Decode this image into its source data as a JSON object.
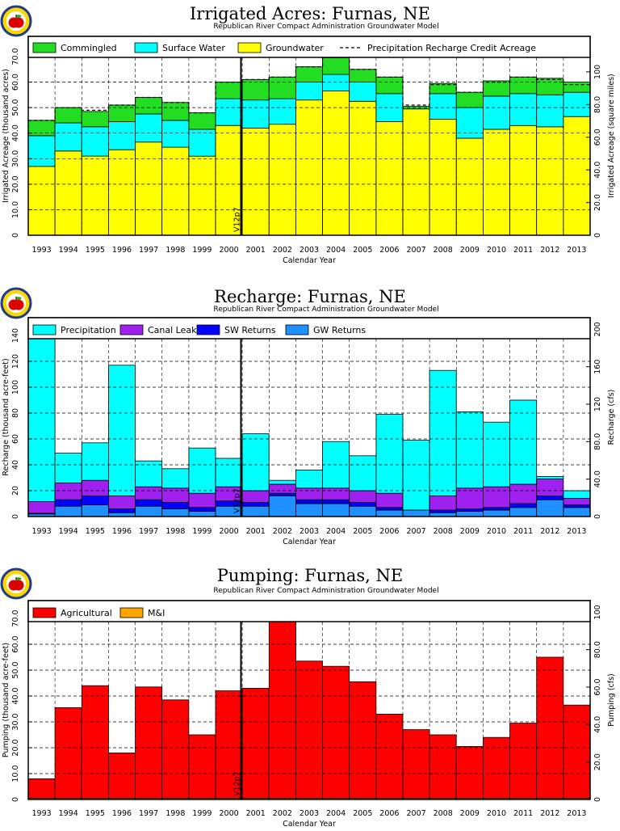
{
  "colors": {
    "groundwater": "#ffff00",
    "surface_water": "#00ffff",
    "commingled": "#22dd22",
    "precipitation": "#00ffff",
    "gw_returns": "#1e90ff",
    "sw_returns": "#0000ff",
    "canal_leakage": "#a020f0",
    "agricultural": "#ff0000",
    "mi": "#ffa500"
  },
  "chart_data": [
    {
      "type": "bar",
      "stacked": true,
      "title": "Irrigated  Acres:  Furnas,  NE",
      "subtitle": "Republican  River  Compact  Administration  Groundwater  Model",
      "xlabel": "Calendar  Year",
      "ylabel": "Irrigated  Acreage  (thousand  acres)",
      "ylabel_right": "Irrigated  Acreage  (square  miles)",
      "categories": [
        "1993",
        "1994",
        "1995",
        "1996",
        "1997",
        "1998",
        "1999",
        "2000",
        "2001",
        "2002",
        "2003",
        "2004",
        "2005",
        "2006",
        "2007",
        "2008",
        "2009",
        "2010",
        "2011",
        "2012",
        "2013"
      ],
      "ylim": [
        0,
        70
      ],
      "y2lim": [
        0,
        109.375
      ],
      "yticks": [
        "0",
        "10.0",
        "20.0",
        "30.0",
        "40.0",
        "50.0",
        "60.0",
        "70.0"
      ],
      "y2ticks": [
        "0",
        "20.0",
        "40.0",
        "60.0",
        "80.0",
        "100"
      ],
      "grid": true,
      "legend_position": "top",
      "annotation": "V12p7",
      "series": [
        {
          "name": "Groundwater",
          "color_key": "groundwater",
          "values": [
            27,
            33,
            31,
            33.5,
            36.5,
            34.5,
            31,
            43,
            42,
            43.5,
            53,
            56.5,
            52.5,
            44.5,
            49.5,
            45.5,
            38,
            41.5,
            43,
            42.5,
            46.5
          ]
        },
        {
          "name": "Surface Water",
          "color_key": "surface_water",
          "values": [
            12,
            11,
            11.5,
            11,
            11,
            10.5,
            10.5,
            10.5,
            11,
            10,
            7,
            6.5,
            7.5,
            11,
            0,
            10,
            12,
            13,
            12.5,
            12.5,
            9.5
          ]
        },
        {
          "name": "Commingled",
          "color_key": "commingled",
          "values": [
            6,
            6,
            6,
            6.5,
            6.5,
            7,
            6.5,
            6.5,
            8,
            8.5,
            6,
            6.5,
            5,
            6.5,
            1,
            4,
            6,
            6,
            6.5,
            6.5,
            4
          ]
        },
        {
          "name": "Precipitation  Recharge  Credit  Acreage",
          "style": "dashed-line",
          "values": [
            45,
            50,
            49,
            51,
            54,
            52,
            48,
            60,
            61,
            62,
            66,
            70,
            65,
            62,
            51,
            59,
            56,
            60,
            62,
            61,
            59
          ]
        }
      ]
    },
    {
      "type": "bar",
      "stacked": true,
      "title": "Recharge:  Furnas,  NE",
      "subtitle": "Republican  River  Compact  Administration  Groundwater  Model",
      "xlabel": "Calendar  Year",
      "ylabel": "Recharge  (thousand  acre-feet)",
      "ylabel_right": "Recharge  (cfs)",
      "categories": [
        "1993",
        "1994",
        "1995",
        "1996",
        "1997",
        "1998",
        "1999",
        "2000",
        "2001",
        "2002",
        "2003",
        "2004",
        "2005",
        "2006",
        "2007",
        "2008",
        "2009",
        "2010",
        "2011",
        "2012",
        "2013"
      ],
      "ylim": [
        0,
        140
      ],
      "y2lim": [
        0,
        193.4
      ],
      "yticks": [
        "0",
        "20",
        "40",
        "60",
        "80",
        "100",
        "120",
        "140"
      ],
      "y2ticks": [
        "0",
        "40.0",
        "80.0",
        "120",
        "160",
        "200"
      ],
      "grid": true,
      "legend_position": "top",
      "annotation": "V12p7",
      "series": [
        {
          "name": "GW  Returns",
          "color_key": "gw_returns",
          "values": [
            2,
            8,
            9,
            3,
            8,
            6,
            4,
            8,
            8,
            16,
            10,
            10,
            8,
            5,
            5,
            3,
            4,
            5,
            7,
            13,
            7
          ]
        },
        {
          "name": "SW  Returns",
          "color_key": "sw_returns",
          "values": [
            0.5,
            5,
            7,
            3,
            5,
            5,
            3,
            4,
            3,
            2,
            3,
            3,
            3,
            2,
            0,
            2,
            2,
            2,
            3,
            3,
            2
          ]
        },
        {
          "name": "Canal  Leakage",
          "color_key": "canal_leakage",
          "values": [
            9,
            13,
            12,
            10,
            10,
            11,
            11,
            11,
            9,
            7,
            9,
            9,
            9,
            11,
            0,
            11,
            16,
            16,
            15,
            13,
            5
          ]
        },
        {
          "name": "Precipitation",
          "color_key": "precipitation",
          "values": [
            129.5,
            23,
            29,
            101,
            20,
            15,
            35,
            22,
            44,
            3,
            14,
            36,
            27,
            61,
            54,
            97,
            59,
            50,
            65,
            2,
            6
          ]
        }
      ]
    },
    {
      "type": "bar",
      "stacked": true,
      "title": "Pumping:  Furnas,  NE",
      "subtitle": "Republican  River  Compact  Administration  Groundwater  Model",
      "xlabel": "Calendar  Year",
      "ylabel": "Pumping  (thousand  acre-feet)",
      "ylabel_right": "Pumping  (cfs)",
      "categories": [
        "1993",
        "1994",
        "1995",
        "1996",
        "1997",
        "1998",
        "1999",
        "2000",
        "2001",
        "2002",
        "2003",
        "2004",
        "2005",
        "2006",
        "2007",
        "2008",
        "2009",
        "2010",
        "2011",
        "2012",
        "2013"
      ],
      "ylim": [
        0,
        70
      ],
      "y2lim": [
        0,
        96.7
      ],
      "yticks": [
        "0",
        "10.0",
        "20.0",
        "30.0",
        "40.0",
        "50.0",
        "60.0",
        "70.0"
      ],
      "y2ticks": [
        "0",
        "20.0",
        "40.0",
        "60.0",
        "80.0",
        "100"
      ],
      "grid": true,
      "legend_position": "top",
      "annotation": "V12p7",
      "series": [
        {
          "name": "M&I",
          "color_key": "mi",
          "values": [
            0.5,
            0.5,
            0.5,
            0.5,
            0.5,
            0.5,
            0.5,
            0.5,
            0.5,
            0.5,
            0.5,
            0.5,
            0.5,
            0.5,
            0.5,
            0.5,
            0.5,
            0.5,
            0.5,
            0.5,
            0.5
          ]
        },
        {
          "name": "Agricultural",
          "color_key": "agricultural",
          "values": [
            7.5,
            35,
            43.5,
            17.5,
            43,
            38,
            24.5,
            41.5,
            42.5,
            69.5,
            53,
            51,
            45,
            32.5,
            26.5,
            24.5,
            20,
            23.5,
            29,
            54.5,
            36
          ]
        }
      ],
      "legend_order": [
        "Agricultural",
        "M&I"
      ]
    }
  ]
}
